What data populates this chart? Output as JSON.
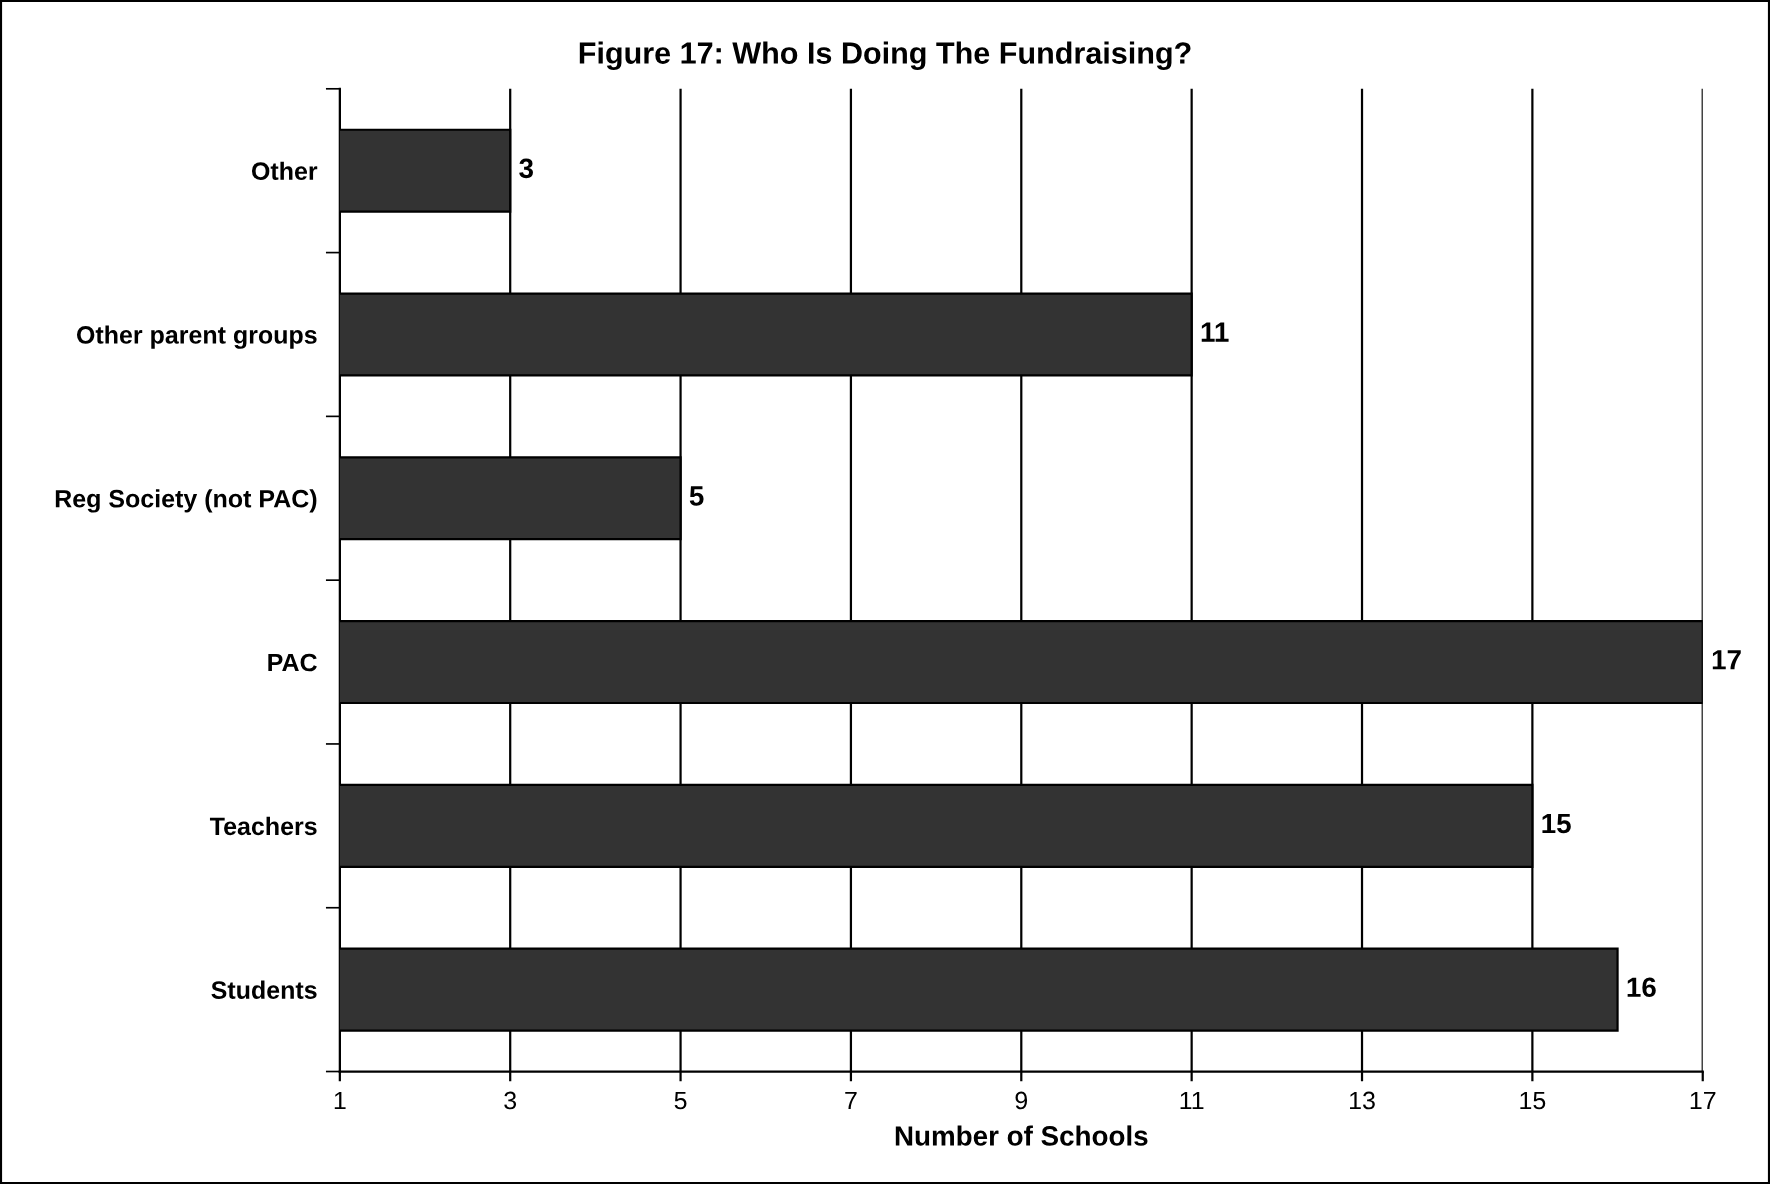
{
  "chart_data": {
    "type": "bar",
    "orientation": "horizontal",
    "title": "Figure 17: Who Is Doing The Fundraising?",
    "xlabel": "Number of Schools",
    "categories": [
      "Other",
      "Other parent groups",
      "Reg Society (not PAC)",
      "PAC",
      "Teachers",
      "Students"
    ],
    "values": [
      3,
      11,
      5,
      17,
      15,
      16
    ],
    "color": "#333333",
    "xlim": [
      1,
      17
    ],
    "xticks": [
      1,
      3,
      5,
      7,
      9,
      11,
      13,
      15,
      17
    ],
    "grid": "x",
    "data_labels": true
  }
}
